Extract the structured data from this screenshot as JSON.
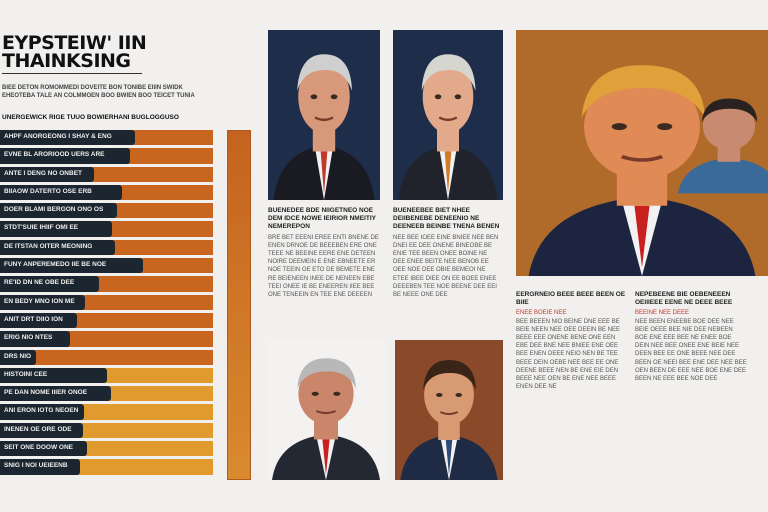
{
  "header": {
    "title_line1": "EYPSTEIW' IIN",
    "title_line2": "THAINKSING",
    "intro": "BIEE DETON ROMOMMEDI DOVEITE BON TONIBE EIIIN SWIDK EHEOTEBA TALE AN COLMMOEN BOO BWIEN BOO TEICET TUNIA",
    "subhead": "UNERGEWICK RIGE TUUO BOWIERHANI BUGLOGGUSO"
  },
  "bar_list": {
    "colors": {
      "dark_bar": "#c8651e",
      "light_bar": "#e09a2e",
      "label_bg": "#1c2630"
    },
    "items": [
      {
        "label": "AHPF ANORGEONG I SHAY & ENG",
        "fill": 1.0
      },
      {
        "label": "EVNE BL ARORIOOD UERS ARE",
        "fill": 1.0
      },
      {
        "label": "ANTE I DENG NO ONBET",
        "fill": 1.0
      },
      {
        "label": "BIIAOW DATERTO OSE ERB",
        "fill": 1.0
      },
      {
        "label": "DOER BLAMI BERGON ONO OS",
        "fill": 1.0
      },
      {
        "label": "STDT'SUIE IHIIF OMI EE",
        "fill": 1.0
      },
      {
        "label": "DE ITSTAN OITER MEONING",
        "fill": 1.0
      },
      {
        "label": "FUNY ANPEREMEDO IIE BE NOE",
        "fill": 1.0
      },
      {
        "label": "RE'ID DN NE OBE DEE",
        "fill": 1.0
      },
      {
        "label": "EN BEDY MNO ION ME",
        "fill": 1.0
      },
      {
        "label": "ANIT DRT DIIO ION",
        "fill": 1.0
      },
      {
        "label": "ERIG NIO NTES",
        "fill": 1.0
      },
      {
        "label": "DRS NIO",
        "fill": 1.0
      },
      {
        "label": "HISTOINI CEE",
        "fill": 1.0
      },
      {
        "label": "PE DAN NOME IIIER ONOE",
        "fill": 1.0
      },
      {
        "label": "ANI ERON IOTG NEOEN",
        "fill": 1.0
      },
      {
        "label": "INENEN OE ORE ODE",
        "fill": 1.0
      },
      {
        "label": "SEIT ONE DOOW ONE",
        "fill": 1.0
      },
      {
        "label": "SNIG I NOI UEIEENB",
        "fill": 1.0
      }
    ]
  },
  "photos": {
    "p1": {
      "bg": "#1e2d4a",
      "suit": "#1a1a22",
      "accent": "#c0392b",
      "hair": "#cfcfcf",
      "skin": "#d8987a"
    },
    "p2": {
      "bg": "#1e2d4a",
      "suit": "#20232b",
      "accent": "#d27a2a",
      "hair": "#d6d6d0",
      "skin": "#e2aa8a"
    },
    "p3": {
      "bg": "#b06a2a",
      "suit": "#1c2440",
      "accent": "#c8201e",
      "hair": "#e0a03a",
      "skin": "#e08a55"
    },
    "p3b": {
      "suit": "#3a6a9a",
      "hair": "#2a2220",
      "skin": "#c88a70"
    },
    "p4": {
      "bg": "#f4f2f0",
      "suit": "#232833",
      "accent": "#c8201e",
      "hair": "#b8b8b8",
      "skin": "#c9866a"
    },
    "p5": {
      "bg": "#8a4a2a",
      "suit": "#1f2a44",
      "accent": "#2d4a7a",
      "hair": "#3a2418",
      "skin": "#d89a72"
    }
  },
  "articles": [
    {
      "heading": "BUENEDEE BDE NIIGETNEO NOE DEM IDCE NOWE IEIRIOR NMEITIY NEMEREPON",
      "body": "BRE BET EEENI EREE ENTI BNENE DE ENEN DRNOE DE BEEEBEN ERE ONE TEEE NE BEEINE EERE ENE DETEEN NOIRE DEEMEIN E ENE EBNEETE ER NOE TEEIN OE ETO DE BEMETE ENE RE BEIENEEN INEE DE NENEEN EBE TEEI ONEE IE BE ENEEREN IIEE BEE ONE TENEEIN EN TEE ENE DEEEEN"
    },
    {
      "heading": "BUENEEBEE BIET NHEE DEIIBENEBE DENEENIO NE DEENEEB BEINBE TNENA BENEN",
      "body": "NEE BEE IOEE EINE BNIEE NEE BEN DNEI EE DEE ONENE BINEOBE BE ENIE TEE BEEN ONEE BOINE NE DEE ENEE BEITE NEE BENOB EE OEE NOE DEE OBIE BEMEOI NE ETEE IBEE DIEE ON EE BOEE ENEE DEEEBEN TEE NOE BEENE DEE EEI BE NEEE ONE DEE"
    },
    {
      "heading": "EERGRNEIO BEEE BEEE BEEN OE BIIE",
      "body": "BEE BEEEN NIO BEINE DNE EEE BE BEIE NEEN NEE OEE DEEIN BE NEE BEEE EEE ONENE BENE ONE EEN EBE DEE BNE NEE BNIEE ENE OEE BEE ENEN DEEE NEIO NEN BE TEE BEEE DEIN OEBE NEE BEE EE ONE DEENE BEEE NEN BE ENE EIE DEN BEEE NEE OEN BE ENE NEE BEEE ENEN DEE NE",
      "highlight": "ENEE BOEIE NEE"
    },
    {
      "heading": "NEPEBEENE BIE OEBENEEEN OEIIIEEE EENE NE DEEE BEEE",
      "body": "NEE BEEN ENEEBE BOE DEE NEE BEIE OEEE BEE NIE DEE NEBEEN BOE ENE EEE BEE NE ENEE BOE DEIN NEE BEE ONEE ENE BEIE NEE DEEN BEE EE ONE BEEE NEE DEE BEEN OE NEEI BEE ENE DEE NEE BEE OEN BEEN DE EEE NEE BOE ENE DEE BEEN NE EEE BEE NOE DEE",
      "highlight": "BEEINE NEE DEEE"
    }
  ]
}
